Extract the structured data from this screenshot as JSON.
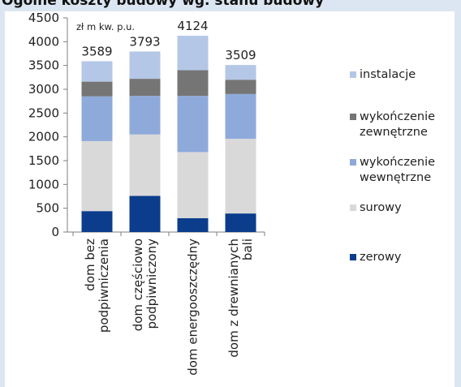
{
  "header": {
    "text": "Ogólne koszty budowy wg. stanu budowy"
  },
  "chart_data": {
    "type": "bar",
    "stacked": true,
    "unit_label": "zł m kw. p.u.",
    "xlabel": "",
    "ylabel": "",
    "ylim": [
      0,
      4500
    ],
    "yticks": [
      0,
      500,
      1000,
      1500,
      2000,
      2500,
      3000,
      3500,
      4000,
      4500
    ],
    "grid": false,
    "legend_position": "right",
    "categories": [
      [
        "dom bez",
        "podpiwniczenia"
      ],
      [
        "dom częściowo",
        "podpiwniczony"
      ],
      [
        "dom energooszczędny"
      ],
      [
        "dom z drewnianych",
        "bali"
      ]
    ],
    "totals": [
      3589,
      3793,
      4124,
      3509
    ],
    "series": [
      {
        "name": [
          "zerowy"
        ],
        "color": "#0b3d8c",
        "values": [
          440,
          760,
          290,
          390
        ]
      },
      {
        "name": [
          "surowy"
        ],
        "color": "#d9d9d9",
        "values": [
          1470,
          1290,
          1390,
          1570
        ]
      },
      {
        "name": [
          "wykończenie",
          "wewnętrzne"
        ],
        "color": "#8eaadb",
        "values": [
          940,
          810,
          1180,
          940
        ]
      },
      {
        "name": [
          "wykończenie",
          "zewnętrzne"
        ],
        "color": "#757575",
        "values": [
          310,
          360,
          540,
          300
        ]
      },
      {
        "name": [
          "instalacje"
        ],
        "color": "#b4c7e7",
        "values": [
          429,
          573,
          724,
          309
        ]
      }
    ]
  }
}
